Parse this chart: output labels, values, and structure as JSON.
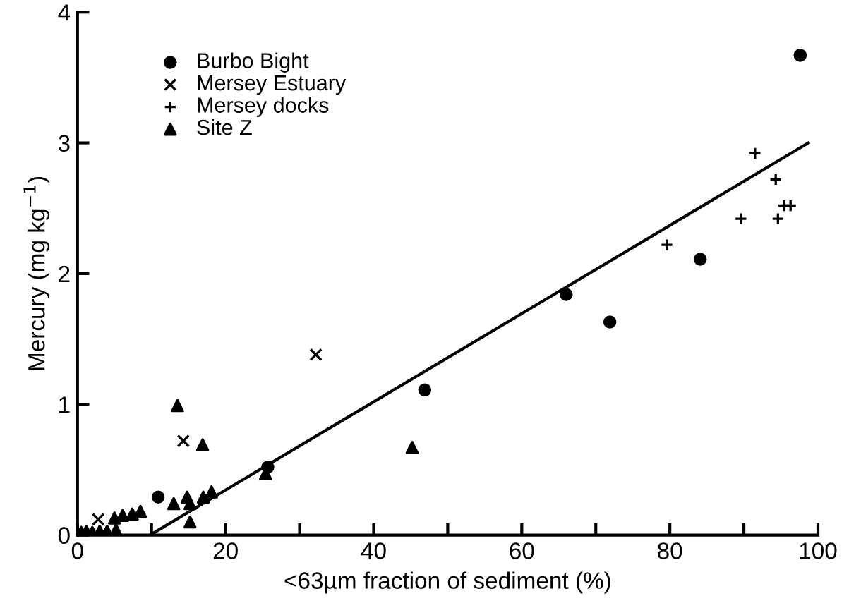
{
  "chart_data": {
    "type": "scatter",
    "xlabel": "<63µm fraction of sediment (%)",
    "ylabel": "Mercury (mg kg$^{−1}$)",
    "xlim": [
      0,
      100
    ],
    "ylim": [
      0,
      4
    ],
    "xticks": [
      0,
      {
        "value": 10,
        "label": null
      },
      20,
      {
        "value": 30,
        "label": null
      },
      40,
      {
        "value": 50,
        "label": null
      },
      60,
      {
        "value": 70,
        "label": null
      },
      80,
      {
        "value": 90,
        "label": null
      },
      100
    ],
    "yticks": [
      0,
      1,
      2,
      3,
      4
    ],
    "grid": false,
    "legend": "top left",
    "series": [
      {
        "name": "Burbo Bight",
        "color": "#000000",
        "marker": "circle",
        "x": [
          10.9,
          25.7,
          46.9,
          66,
          71.9,
          84.1,
          97.6
        ],
        "values": [
          0.29,
          0.52,
          1.11,
          1.84,
          1.63,
          2.11,
          3.67
        ]
      },
      {
        "name": "Mersey Estuary",
        "color": "#000000",
        "marker": "cross",
        "x": [
          2.8,
          14.3,
          32.2
        ],
        "values": [
          0.12,
          0.72,
          1.38
        ]
      },
      {
        "name": "Mersey docks",
        "color": "#000000",
        "marker": "plus",
        "x": [
          79.6,
          89.6,
          91.5,
          94.3,
          94.6,
          95.4,
          96.3
        ],
        "values": [
          2.22,
          2.42,
          2.92,
          2.72,
          2.42,
          2.52,
          2.52
        ]
      },
      {
        "name": "Site Z",
        "color": "#000000",
        "marker": "triangle",
        "x": [
          0.5,
          1.2,
          2,
          3,
          4,
          5.2,
          5,
          6.1,
          7.4,
          8.5,
          13,
          13.5,
          14.8,
          15.2,
          15.2,
          16.9,
          17,
          18.1,
          25.4,
          45.2
        ],
        "values": [
          0.02,
          0.03,
          0.02,
          0.03,
          0.03,
          0.04,
          0.13,
          0.15,
          0.16,
          0.18,
          0.24,
          0.99,
          0.29,
          0.24,
          0.1,
          0.69,
          0.29,
          0.33,
          0.47,
          0.67
        ]
      },
      {
        "type": "line",
        "color": "#000000",
        "line_style": "solid",
        "x": [
          9.8,
          98.7
        ],
        "values": [
          0,
          3.0
        ]
      }
    ]
  }
}
